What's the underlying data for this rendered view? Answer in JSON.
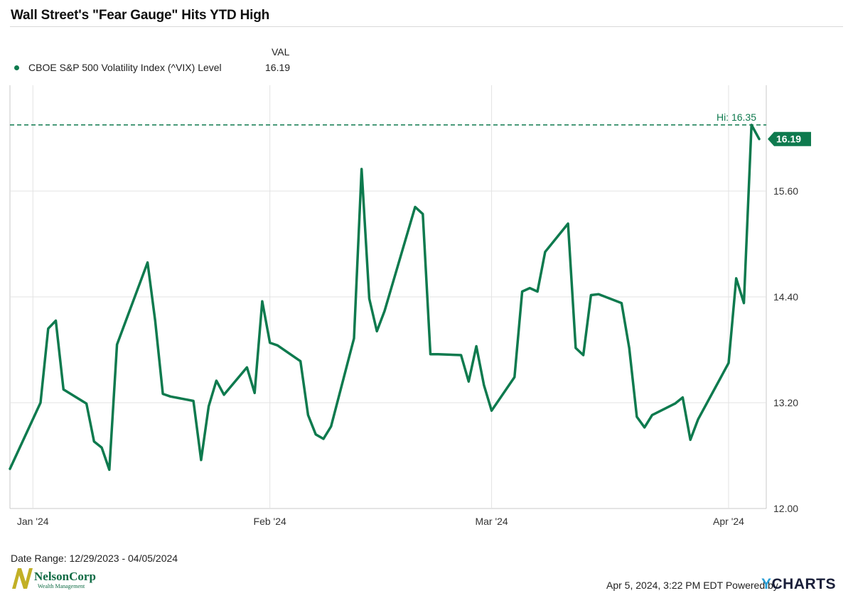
{
  "title": "Wall Street's \"Fear Gauge\" Hits YTD High",
  "legend": {
    "value_header": "VAL",
    "series_label": "CBOE S&P 500 Volatility Index (^VIX) Level",
    "series_value": "16.19"
  },
  "footer": {
    "date_range": "Date Range: 12/29/2023 - 04/05/2024",
    "timestamp": "Apr 5, 2024, 3:22 PM EDT",
    "powered_by": "Powered by",
    "ycharts_y": "Y",
    "ycharts_rest": "CHARTS",
    "logo_name": "NelsonCorp",
    "logo_sub": "Wealth Management"
  },
  "colors": {
    "series": "#0e7a4e",
    "grid": "#e3e3e3",
    "axis": "#c8c8c8",
    "logo_gold": "#c2b026"
  },
  "chart_data": {
    "type": "line",
    "ylim": [
      12.0,
      16.8
    ],
    "yticks": [
      "12.00",
      "13.20",
      "14.40",
      "15.60"
    ],
    "x_ticks": [
      {
        "label": "Jan '24",
        "date": "2024-01-01"
      },
      {
        "label": "Feb '24",
        "date": "2024-02-01"
      },
      {
        "label": "Mar '24",
        "date": "2024-03-01"
      },
      {
        "label": "Apr '24",
        "date": "2024-04-01"
      }
    ],
    "high_label": "Hi: 16.35",
    "high_value": 16.35,
    "last_label": "16.19",
    "last_value": 16.19,
    "series": [
      {
        "name": "CBOE S&P 500 Volatility Index (^VIX) Level",
        "x": [
          "2023-12-29",
          "2024-01-02",
          "2024-01-03",
          "2024-01-04",
          "2024-01-05",
          "2024-01-08",
          "2024-01-09",
          "2024-01-10",
          "2024-01-11",
          "2024-01-12",
          "2024-01-16",
          "2024-01-17",
          "2024-01-18",
          "2024-01-19",
          "2024-01-22",
          "2024-01-23",
          "2024-01-24",
          "2024-01-25",
          "2024-01-26",
          "2024-01-29",
          "2024-01-30",
          "2024-01-31",
          "2024-02-01",
          "2024-02-02",
          "2024-02-05",
          "2024-02-06",
          "2024-02-07",
          "2024-02-08",
          "2024-02-09",
          "2024-02-12",
          "2024-02-13",
          "2024-02-14",
          "2024-02-15",
          "2024-02-16",
          "2024-02-20",
          "2024-02-21",
          "2024-02-22",
          "2024-02-23",
          "2024-02-26",
          "2024-02-27",
          "2024-02-28",
          "2024-02-29",
          "2024-03-01",
          "2024-03-04",
          "2024-03-05",
          "2024-03-06",
          "2024-03-07",
          "2024-03-08",
          "2024-03-11",
          "2024-03-12",
          "2024-03-13",
          "2024-03-14",
          "2024-03-15",
          "2024-03-18",
          "2024-03-19",
          "2024-03-20",
          "2024-03-21",
          "2024-03-22",
          "2024-03-25",
          "2024-03-26",
          "2024-03-27",
          "2024-03-28",
          "2024-04-01",
          "2024-04-02",
          "2024-04-03",
          "2024-04-04",
          "2024-04-05"
        ],
        "values": [
          12.45,
          13.2,
          14.04,
          14.13,
          13.35,
          13.19,
          12.76,
          12.69,
          12.44,
          13.86,
          14.79,
          14.13,
          13.3,
          13.27,
          13.22,
          12.55,
          13.16,
          13.45,
          13.29,
          13.6,
          13.31,
          14.35,
          13.88,
          13.85,
          13.67,
          13.06,
          12.84,
          12.79,
          12.93,
          13.93,
          15.85,
          14.38,
          14.01,
          14.24,
          15.42,
          15.34,
          13.75,
          13.75,
          13.74,
          13.44,
          13.84,
          13.4,
          13.11,
          13.49,
          14.46,
          14.5,
          14.46,
          14.91,
          15.23,
          13.82,
          13.74,
          14.42,
          14.43,
          14.33,
          13.82,
          13.04,
          12.92,
          13.06,
          13.19,
          13.26,
          12.78,
          13.01,
          13.65,
          14.61,
          14.33,
          16.35,
          16.19
        ]
      }
    ]
  }
}
